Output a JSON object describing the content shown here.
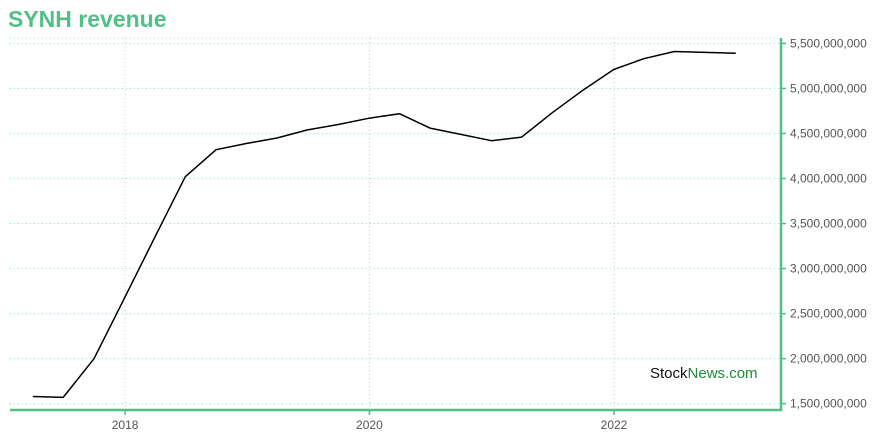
{
  "chart_data": {
    "type": "line",
    "title": "SYNH revenue",
    "xlabel": "",
    "ylabel": "",
    "x": [
      "2017-03-31",
      "2017-06-30",
      "2017-09-30",
      "2017-12-31",
      "2018-03-31",
      "2018-06-30",
      "2018-09-30",
      "2018-12-31",
      "2019-03-31",
      "2019-06-30",
      "2019-09-30",
      "2019-12-31",
      "2020-03-31",
      "2020-06-30",
      "2020-09-30",
      "2020-12-31",
      "2021-03-31",
      "2021-06-30",
      "2021-09-30",
      "2021-12-31",
      "2022-03-31",
      "2022-06-30",
      "2022-09-30",
      "2022-12-31"
    ],
    "series": [
      {
        "values": [
          1580000000,
          1570000000,
          2000000000,
          2680000000,
          3350000000,
          4020000000,
          4320000000,
          4390000000,
          4450000000,
          4540000000,
          4600000000,
          4670000000,
          4720000000,
          4560000000,
          4490000000,
          4420000000,
          4460000000,
          4730000000,
          4980000000,
          5210000000,
          5330000000,
          5410000000,
          5400000000,
          5390000000
        ],
        "color": "#000000"
      }
    ],
    "xticks": [
      "2018",
      "2020",
      "2022"
    ],
    "yticks": [
      "1,500,000,000",
      "2,000,000,000",
      "2,500,000,000",
      "3,000,000,000",
      "3,500,000,000",
      "4,000,000,000",
      "4,500,000,000",
      "5,000,000,000",
      "5,500,000,000"
    ],
    "ylim": [
      1430000000,
      5560000000
    ],
    "xlim": [
      "2017-01-22",
      "2023-05-15"
    ],
    "grid": true,
    "legend": "none",
    "axis_color": "#52bf86",
    "grid_color": "#9dd9c2"
  },
  "watermark": {
    "part1": "Stock",
    "part2": "News",
    "part3": ".com"
  }
}
